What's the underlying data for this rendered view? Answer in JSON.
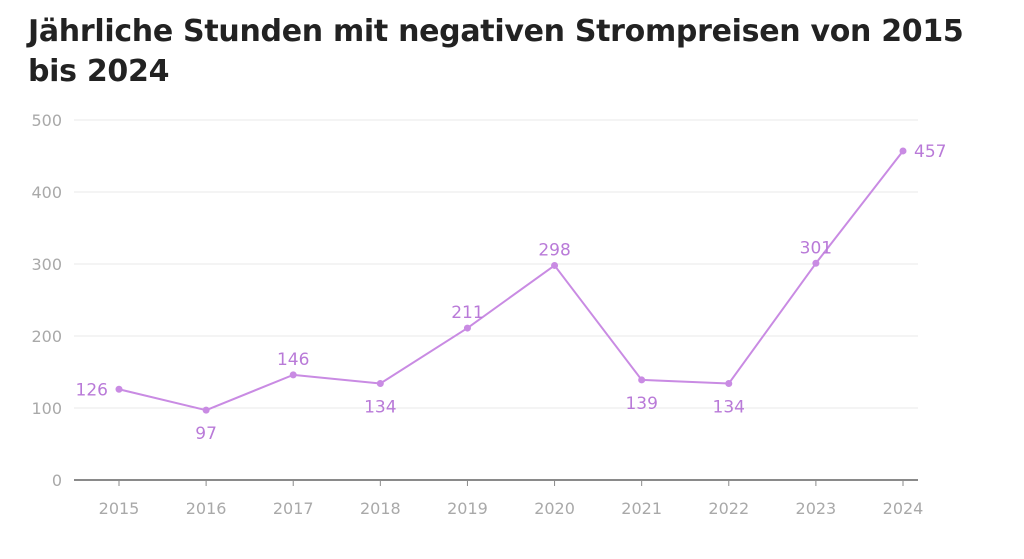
{
  "chart_data": {
    "type": "line",
    "title": "Jährliche Stunden mit negativen Strompreisen von 2015 bis 2024",
    "xlabel": "",
    "ylabel": "",
    "categories": [
      "2015",
      "2016",
      "2017",
      "2018",
      "2019",
      "2020",
      "2021",
      "2022",
      "2023",
      "2024"
    ],
    "series": [
      {
        "values": [
          126,
          97,
          146,
          134,
          211,
          298,
          139,
          134,
          301,
          457
        ]
      }
    ],
    "ylim": [
      0,
      500
    ],
    "yticks": [
      0,
      100,
      200,
      300,
      400,
      500
    ],
    "grid": true,
    "legend": "none",
    "data_labels": true,
    "colors": {
      "line": "#c98be3",
      "label": "#b97ad8",
      "grid": "#e8e8e8",
      "baseline": "#8a8a8a",
      "tick_text": "#a9a9a9",
      "title": "#222222"
    }
  }
}
